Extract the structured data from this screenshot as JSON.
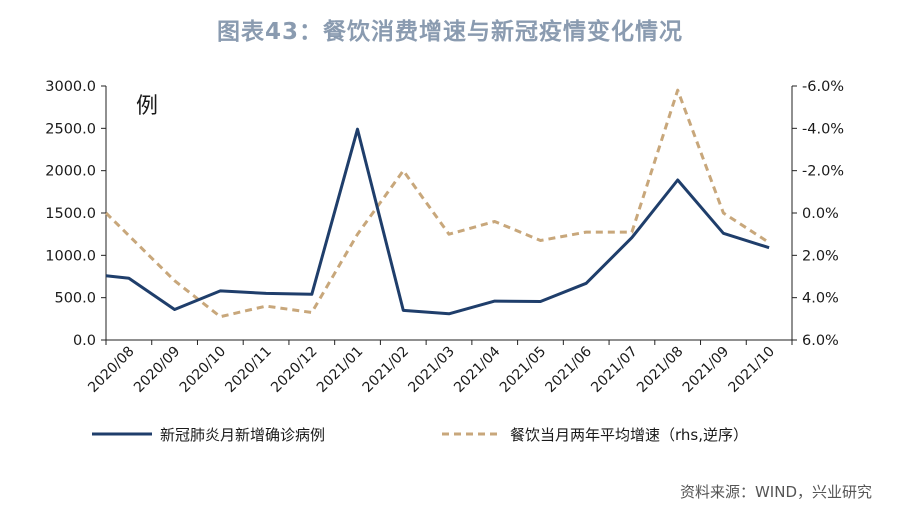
{
  "title": "图表43：餐饮消费增速与新冠疫情变化情况",
  "source": "资料来源：WIND，兴业研究",
  "corner_label": "例",
  "colors": {
    "series_cases": "#1f3e6b",
    "series_dining": "#c8a77b",
    "title": "#8a9bb0"
  },
  "chart_data": {
    "type": "line",
    "categories": [
      "2020/08",
      "2020/09",
      "2020/10",
      "2020/11",
      "2020/12",
      "2021/01",
      "2021/02",
      "2021/03",
      "2021/04",
      "2021/05",
      "2021/06",
      "2021/07",
      "2021/08",
      "2021/09",
      "2021/10"
    ],
    "left_axis": {
      "ylim": [
        0,
        3000
      ],
      "ticks": [
        0,
        500,
        1000,
        1500,
        2000,
        2500,
        3000
      ],
      "tick_labels": [
        "0.0",
        "500.0",
        "1000.0",
        "1500.0",
        "2000.0",
        "2500.0",
        "3000.0"
      ]
    },
    "right_axis": {
      "inverted": true,
      "ylim": [
        6.0,
        -6.0
      ],
      "ticks": [
        6,
        4,
        2,
        0,
        -2,
        -4,
        -6
      ],
      "tick_labels": [
        "6.0%",
        "4.0%",
        "2.0%",
        "0.0%",
        "-2.0%",
        "-4.0%",
        "-6.0%"
      ]
    },
    "series": [
      {
        "name": "新冠肺炎月新增确诊病例",
        "axis": "left",
        "style": "solid",
        "x": [
          0.0,
          0.5,
          1.5,
          2.5,
          3.5,
          4.5,
          5.5,
          6.5,
          7.5,
          8.5,
          9.5,
          10.5,
          11.5,
          12.5,
          13.5,
          14.5
        ],
        "values": [
          760,
          730,
          360,
          580,
          550,
          540,
          2490,
          350,
          310,
          460,
          455,
          670,
          1210,
          1890,
          1260,
          1090
        ]
      },
      {
        "name": "餐饮当月两年平均增速（rhs,逆序）",
        "axis": "right",
        "style": "dashed",
        "x": [
          0.0,
          1.5,
          2.5,
          3.5,
          4.5,
          5.5,
          6.5,
          7.5,
          8.5,
          9.5,
          10.5,
          11.5,
          12.5,
          13.5,
          14.5
        ],
        "values": [
          0.0,
          3.2,
          4.9,
          4.4,
          4.7,
          1.0,
          -2.0,
          1.0,
          0.4,
          1.3,
          0.9,
          0.9,
          -5.8,
          0.0,
          1.4
        ]
      }
    ]
  }
}
